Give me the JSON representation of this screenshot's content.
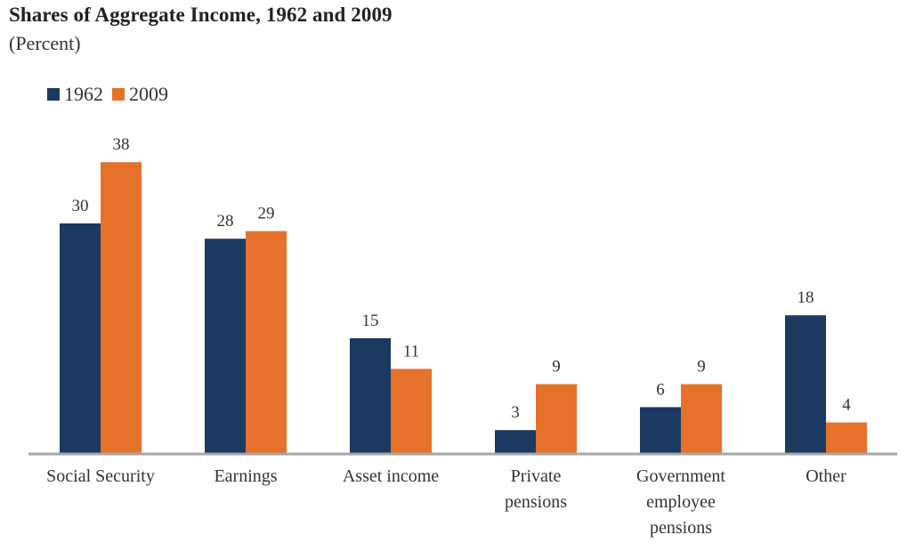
{
  "chart_data": {
    "type": "bar",
    "title": "Shares of Aggregate Income, 1962 and 2009",
    "subtitle": "(Percent)",
    "categories": [
      [
        "Social Security"
      ],
      [
        "Earnings"
      ],
      [
        "Asset income"
      ],
      [
        "Private",
        "pensions"
      ],
      [
        "Government",
        "employee",
        "pensions"
      ],
      [
        "Other"
      ]
    ],
    "series": [
      {
        "name": "1962",
        "color": "#1b3a60",
        "values": [
          30,
          28,
          15,
          3,
          6,
          18
        ]
      },
      {
        "name": "2009",
        "color": "#e5712a",
        "values": [
          38,
          29,
          11,
          9,
          9,
          4
        ]
      }
    ],
    "ylim": [
      0,
      38
    ],
    "legend_position": "top-left",
    "grid": false,
    "axis_color": "#a6a6a6"
  }
}
